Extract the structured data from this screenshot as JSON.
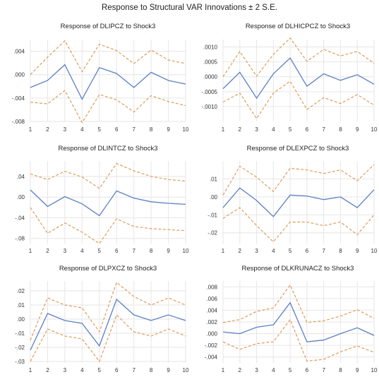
{
  "title": "Response to Structural VAR Innovations ± 2 S.E.",
  "colors": {
    "response": "#5b7fc4",
    "band": "#e09b58",
    "grid": "#e6e6e6"
  },
  "chart_data": [
    {
      "type": "line",
      "title": "Response of DLIPCZ to Shock3",
      "x": [
        1,
        2,
        3,
        4,
        5,
        6,
        7,
        8,
        9,
        10
      ],
      "ylim": [
        -0.008,
        0.006
      ],
      "yticks": [
        0.004,
        0.0,
        -0.004,
        -0.008
      ],
      "ytick_labels": [
        ".004",
        ".000",
        "-.004",
        "-.008"
      ],
      "series": [
        {
          "role": "response",
          "values": [
            -0.0022,
            -0.001,
            0.0017,
            -0.0042,
            0.0012,
            0.0002,
            -0.0022,
            0.0004,
            -0.001,
            -0.0016
          ]
        },
        {
          "role": "upper",
          "values": [
            0.0,
            0.003,
            0.0058,
            0.0005,
            0.0052,
            0.0041,
            0.0019,
            0.0042,
            0.0025,
            0.0019
          ]
        },
        {
          "role": "lower",
          "values": [
            -0.0047,
            -0.005,
            -0.0027,
            -0.0082,
            -0.0034,
            -0.0043,
            -0.0064,
            -0.0036,
            -0.0046,
            -0.0053
          ]
        }
      ]
    },
    {
      "type": "line",
      "title": "Response of DLHICPCZ to Shock3",
      "x": [
        1,
        2,
        3,
        4,
        5,
        6,
        7,
        8,
        9,
        10
      ],
      "ylim": [
        -0.0015,
        0.00125
      ],
      "yticks": [
        0.001,
        0.0005,
        0.0,
        -0.0005,
        -0.001
      ],
      "ytick_labels": [
        ".0010",
        ".0005",
        ".0000",
        "-.0005",
        "-.0010"
      ],
      "series": [
        {
          "role": "response",
          "values": [
            -0.0004,
            0.00015,
            -0.00072,
            0.0001,
            0.00063,
            -0.00032,
            0.0001,
            -0.00012,
            7e-05,
            -0.00025
          ]
        },
        {
          "role": "upper",
          "values": [
            0.0,
            0.00085,
            2e-05,
            0.00075,
            0.0013,
            0.00052,
            0.00092,
            0.0007,
            0.00085,
            0.00045
          ]
        },
        {
          "role": "lower",
          "values": [
            -0.00085,
            -0.00055,
            -0.0014,
            -0.00055,
            -0.00015,
            -0.0011,
            -0.0007,
            -0.0009,
            -0.0006,
            -0.00095
          ]
        }
      ]
    },
    {
      "type": "line",
      "title": "Response of DLINTCZ to Shock3",
      "x": [
        1,
        2,
        3,
        4,
        5,
        6,
        7,
        8,
        9,
        10
      ],
      "ylim": [
        -0.09,
        0.07
      ],
      "yticks": [
        0.04,
        0.0,
        -0.04,
        -0.08
      ],
      "ytick_labels": [
        ".04",
        ".00",
        "-.04",
        "-.08"
      ],
      "series": [
        {
          "role": "response",
          "values": [
            0.014,
            -0.018,
            0.001,
            -0.013,
            -0.036,
            0.012,
            -0.002,
            -0.009,
            -0.012,
            -0.014
          ]
        },
        {
          "role": "upper",
          "values": [
            0.045,
            0.034,
            0.05,
            0.039,
            0.017,
            0.065,
            0.051,
            0.04,
            0.034,
            0.031
          ]
        },
        {
          "role": "lower",
          "values": [
            -0.02,
            -0.07,
            -0.05,
            -0.068,
            -0.09,
            -0.042,
            -0.057,
            -0.061,
            -0.063,
            -0.065
          ]
        }
      ]
    },
    {
      "type": "line",
      "title": "Response of DLEXPCZ to Shock3",
      "x": [
        1,
        2,
        3,
        4,
        5,
        6,
        7,
        8,
        9,
        10
      ],
      "ylim": [
        -0.026,
        0.02
      ],
      "yticks": [
        0.01,
        0.0,
        -0.01,
        -0.02
      ],
      "ytick_labels": [
        ".01",
        ".00",
        "-.01",
        "-.02"
      ],
      "series": [
        {
          "role": "response",
          "values": [
            -0.006,
            0.005,
            -0.002,
            -0.011,
            0.001,
            0.0005,
            -0.0015,
            0.0,
            -0.006,
            0.004
          ]
        },
        {
          "role": "upper",
          "values": [
            0.001,
            0.017,
            0.011,
            0.003,
            0.016,
            0.015,
            0.013,
            0.015,
            0.009,
            0.018
          ]
        },
        {
          "role": "lower",
          "values": [
            -0.012,
            -0.006,
            -0.016,
            -0.025,
            -0.014,
            -0.014,
            -0.016,
            -0.014,
            -0.021,
            -0.01
          ]
        }
      ]
    },
    {
      "type": "line",
      "title": "Response of DLPXCZ to Shock3",
      "x": [
        1,
        2,
        3,
        4,
        5,
        6,
        7,
        8,
        9,
        10
      ],
      "ylim": [
        -0.031,
        0.027
      ],
      "yticks": [
        0.02,
        0.01,
        0.0,
        -0.01,
        -0.02,
        -0.03
      ],
      "ytick_labels": [
        ".02",
        ".01",
        ".00",
        "-.01",
        "-.02",
        "-.03"
      ],
      "series": [
        {
          "role": "response",
          "values": [
            -0.022,
            0.004,
            -0.001,
            -0.003,
            -0.019,
            0.014,
            0.003,
            -0.001,
            0.003,
            -0.001
          ]
        },
        {
          "role": "upper",
          "values": [
            -0.015,
            0.015,
            0.01,
            0.008,
            -0.009,
            0.026,
            0.016,
            0.01,
            0.015,
            0.01
          ]
        },
        {
          "role": "lower",
          "values": [
            -0.03,
            -0.007,
            -0.012,
            -0.014,
            -0.03,
            0.003,
            -0.009,
            -0.012,
            -0.007,
            -0.012
          ]
        }
      ]
    },
    {
      "type": "line",
      "title": "Response of DLKRUNACZ to Shock3",
      "x": [
        1,
        2,
        3,
        4,
        5,
        6,
        7,
        8,
        9,
        10
      ],
      "ylim": [
        -0.005,
        0.009
      ],
      "yticks": [
        0.008,
        0.006,
        0.004,
        0.002,
        0.0,
        -0.002,
        -0.004
      ],
      "ytick_labels": [
        ".008",
        ".006",
        ".004",
        ".002",
        ".000",
        "-.002",
        "-.004"
      ],
      "series": [
        {
          "role": "response",
          "values": [
            0.0003,
            0.0,
            0.0011,
            0.0015,
            0.0053,
            -0.0014,
            -0.0011,
            0.0,
            0.001,
            -0.0003
          ]
        },
        {
          "role": "upper",
          "values": [
            0.0019,
            0.0024,
            0.0038,
            0.0044,
            0.0083,
            0.0019,
            0.0022,
            0.003,
            0.0041,
            0.0026
          ]
        },
        {
          "role": "lower",
          "values": [
            -0.0014,
            -0.0027,
            -0.0017,
            -0.0014,
            0.0024,
            -0.0047,
            -0.0044,
            -0.0031,
            -0.0021,
            -0.0032
          ]
        }
      ]
    }
  ]
}
